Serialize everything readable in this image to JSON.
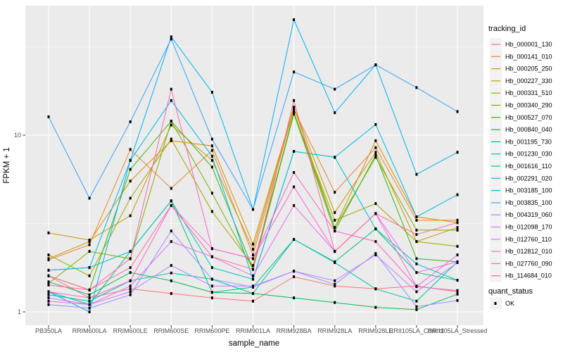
{
  "figure": {
    "background": "#FFFFFF",
    "panel_background": "#EBEBEB",
    "grid_color": "#FFFFFF",
    "axis_text_color": "#4D4D4D",
    "title_text_color": "#000000",
    "point_color": "#000000"
  },
  "legend": {
    "tracking_title": "tracking_id",
    "quant_title": "quant_status",
    "quant_items": [
      {
        "label": "OK",
        "marker": "black-square"
      }
    ]
  },
  "chart_data": {
    "type": "line",
    "title": "",
    "xlabel": "sample_name",
    "ylabel": "FPKM + 1",
    "y_scale": "log10",
    "grid": true,
    "legend_position": "right",
    "point_shape": "filled-square",
    "ylim": [
      0.84,
      54
    ],
    "y_ticks": [
      {
        "label": "1",
        "value": 1
      },
      {
        "label": "10",
        "value": 10
      }
    ],
    "y_minor_ticks": [
      3.162,
      31.62
    ],
    "categories": [
      "PB350LA",
      "RRIM600LA",
      "RRIM600LE",
      "RRIM600SE",
      "RRIM600PE",
      "RRIM901LA",
      "RRIM928BA",
      "RRIM928LA",
      "RRIM928LE",
      "RRII105LA_Control",
      "RRII105LA_Stressed"
    ],
    "series": [
      {
        "name": "Hb_000001_130",
        "color": "#F8766D",
        "values": [
          1.6,
          1.2,
          1.35,
          1.27,
          1.2,
          1.15,
          1.58,
          1.4,
          1.35,
          1.4,
          1.3
        ]
      },
      {
        "name": "Hb_000141_010",
        "color": "#EA8331",
        "values": [
          1.97,
          2.4,
          8.3,
          5.0,
          8.2,
          2.1,
          14.0,
          4.75,
          8.5,
          3.3,
          3.3
        ]
      },
      {
        "name": "Hb_000205_250",
        "color": "#D89000",
        "values": [
          2.0,
          2.5,
          5.5,
          9.3,
          8.7,
          2.42,
          14.4,
          3.0,
          9.3,
          3.45,
          3.2
        ]
      },
      {
        "name": "Hb_000227_330",
        "color": "#C09B00",
        "values": [
          2.8,
          2.55,
          3.5,
          11.4,
          7.2,
          2.26,
          14.4,
          3.65,
          8.0,
          2.5,
          3.0
        ]
      },
      {
        "name": "Hb_000331_510",
        "color": "#A3A500",
        "values": [
          2.1,
          1.6,
          4.4,
          9.5,
          3.7,
          1.83,
          13.2,
          3.3,
          4.1,
          2.5,
          2.35
        ]
      },
      {
        "name": "Hb_000340_290",
        "color": "#7CAE00",
        "values": [
          1.45,
          2.2,
          2.0,
          12.0,
          4.7,
          1.74,
          13.5,
          3.0,
          7.5,
          2.9,
          2.9
        ]
      },
      {
        "name": "Hb_000527_070",
        "color": "#39B600",
        "values": [
          1.6,
          1.33,
          6.4,
          12.0,
          6.6,
          1.74,
          13.2,
          2.87,
          7.7,
          2.0,
          1.92
        ]
      },
      {
        "name": "Hb_000840_040",
        "color": "#00BB4E",
        "values": [
          1.48,
          1.25,
          1.67,
          1.5,
          1.29,
          1.27,
          1.2,
          1.13,
          1.06,
          1.03,
          1.26
        ]
      },
      {
        "name": "Hb_001195_730",
        "color": "#00BF7D",
        "values": [
          1.3,
          1.1,
          2.2,
          4.25,
          1.29,
          1.38,
          2.57,
          1.92,
          2.95,
          1.67,
          1.51
        ]
      },
      {
        "name": "Hb_001230_030",
        "color": "#00C1A3",
        "values": [
          1.25,
          1.15,
          1.5,
          1.66,
          1.53,
          1.27,
          2.57,
          1.9,
          1.35,
          1.15,
          1.92
        ]
      },
      {
        "name": "Hb_001616_110",
        "color": "#00BFC4",
        "values": [
          1.72,
          1.78,
          2.2,
          4.25,
          1.78,
          1.53,
          8.1,
          7.5,
          2.95,
          1.87,
          1.51
        ]
      },
      {
        "name": "Hb_002291_020",
        "color": "#00BAE0",
        "values": [
          1.72,
          1.78,
          7.2,
          15.7,
          7.6,
          1.53,
          8.1,
          7.5,
          11.5,
          3.45,
          4.6
        ]
      },
      {
        "name": "Hb_003185_100",
        "color": "#00B0F6",
        "values": [
          1.3,
          1.0,
          7.2,
          36.0,
          17.5,
          3.8,
          45.0,
          13.4,
          25.0,
          6.0,
          8.0
        ]
      },
      {
        "name": "Hb_003835_100",
        "color": "#35A2FF",
        "values": [
          12.7,
          4.4,
          11.9,
          35.0,
          9.5,
          3.8,
          22.8,
          18.2,
          25.0,
          18.6,
          13.6
        ]
      },
      {
        "name": "Hb_004319_060",
        "color": "#9590FF",
        "values": [
          1.1,
          1.05,
          1.25,
          2.87,
          1.53,
          1.38,
          1.7,
          1.43,
          2.14,
          1.07,
          1.16
        ]
      },
      {
        "name": "Hb_012098_170",
        "color": "#C77CFF",
        "values": [
          1.15,
          1.1,
          1.3,
          1.83,
          1.4,
          1.4,
          1.7,
          1.5,
          2.1,
          1.3,
          1.9
        ]
      },
      {
        "name": "Hb_012760_110",
        "color": "#E76BF3",
        "values": [
          1.2,
          1.1,
          1.4,
          2.5,
          2.05,
          1.6,
          4.0,
          2.2,
          3.6,
          1.67,
          1.92
        ]
      },
      {
        "name": "Hb_012812_010",
        "color": "#FA62DB",
        "values": [
          1.3,
          1.2,
          1.5,
          4.0,
          2.28,
          2.0,
          5.1,
          2.2,
          3.6,
          1.39,
          2.1
        ]
      },
      {
        "name": "Hb_027760_090",
        "color": "#FF62BC",
        "values": [
          1.42,
          1.33,
          2.0,
          18.2,
          2.28,
          2.0,
          6.15,
          2.87,
          2.5,
          1.39,
          1.32
        ]
      },
      {
        "name": "Hb_114684_010",
        "color": "#FF6A98",
        "values": [
          1.6,
          1.33,
          1.78,
          4.0,
          2.05,
          1.74,
          15.7,
          2.2,
          3.6,
          2.74,
          3.2
        ]
      }
    ]
  }
}
